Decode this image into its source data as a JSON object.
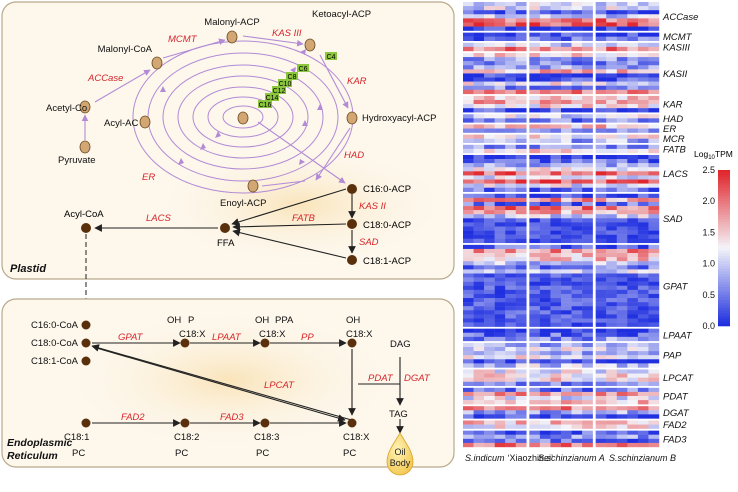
{
  "plastid": {
    "label": "Plastid",
    "nodes": {
      "malonyl_acp": "Malonyl-ACP",
      "malonyl_coa": "Malonyl-CoA",
      "ketoacyl_acp": "Ketoacyl-ACP",
      "acetyl_coa": "Acetyl-Co",
      "acyl_acp": "Acyl-AC",
      "hydroxyacyl_acp": "Hydroxyacyl-ACP",
      "pyruvate": "Pyruvate",
      "enoyl_acp": "Enoyl-ACP",
      "c16_0_acp": "C16:0-ACP",
      "c18_0_acp": "C18:0-ACP",
      "c18_1_acp": "C18:1-ACP",
      "acyl_coa": "Acyl-CoA",
      "ffa": "FFA"
    },
    "enzymes": {
      "mcmt": "MCMT",
      "kas3": "KAS III",
      "accase": "ACCase",
      "kar": "KAR",
      "had": "HAD",
      "er": "ER",
      "kas2": "KAS II",
      "fatb": "FATB",
      "sad": "SAD",
      "lacs": "LACS"
    },
    "chain_lengths": [
      "C4",
      "C6",
      "C8",
      "C10",
      "C12",
      "C14",
      "C16"
    ]
  },
  "er": {
    "label_line1": "Endoplasmic",
    "label_line2": "Reticulum",
    "nodes": {
      "c16_0_coa": "C16:0-CoA",
      "c18_0_coa": "C18:0-CoA",
      "c18_1_coa": "C18:1-CoA",
      "oh1": "OH",
      "p1": "P",
      "c18x_1": "C18:X",
      "oh2": "OH",
      "ppa": "PPA",
      "c18x_2": "C18:X",
      "oh3": "OH",
      "c18x_3": "C18:X",
      "dag": "DAG",
      "tag": "TAG",
      "oil_line1": "Oil",
      "oil_line2": "Body",
      "c18_1": "C18:1",
      "c18_2": "C18:2",
      "c18_3": "C18:3",
      "c18x_4": "C18:X",
      "pc": "PC"
    },
    "enzymes": {
      "gpat": "GPAT",
      "lpaat": "LPAAT",
      "pp": "PP",
      "pdat": "PDAT",
      "dgat": "DGAT",
      "lpcat": "LPCAT",
      "fad2": "FAD2",
      "fad3": "FAD3"
    }
  },
  "heatmap": {
    "genes": [
      "ACCase",
      "MCMT",
      "KASIII",
      "KASII",
      "KAR",
      "HAD",
      "ER",
      "MCR",
      "FATB",
      "LACS",
      "SAD",
      "GPAT",
      "LPAAT",
      "PAP",
      "LPCAT",
      "PDAT",
      "DGAT",
      "FAD2",
      "FAD3"
    ],
    "gene_row_counts": [
      7,
      2,
      2,
      10,
      4,
      2,
      2,
      2,
      2,
      9,
      12,
      20,
      3,
      6,
      4,
      4,
      3,
      2,
      4
    ],
    "samples": [
      {
        "name": "S.indicum",
        "cultivar": "‘Xiaozhihei’"
      },
      {
        "name": "S.schinzianum A"
      },
      {
        "name": "S.schinzianum B"
      }
    ],
    "legend": {
      "title_prefix": "Log",
      "title_sub": "10",
      "title_suffix": "TPM",
      "ticks": [
        "2.5",
        "2.0",
        "1.5",
        "1.0",
        "0.5",
        "0.0"
      ],
      "min": 0.0,
      "max": 2.5
    },
    "colors": {
      "low": "#1f2fe0",
      "mid": "#f4f4f8",
      "high": "#e0252c"
    }
  },
  "colors": {
    "enzyme": "#d6262b",
    "cycle": "#b28ad6",
    "node_fill": "#d2a773",
    "node_dark": "#5a2f0c",
    "chain_green": "#8cc63e",
    "panel_bg": "#fdf7ec"
  }
}
